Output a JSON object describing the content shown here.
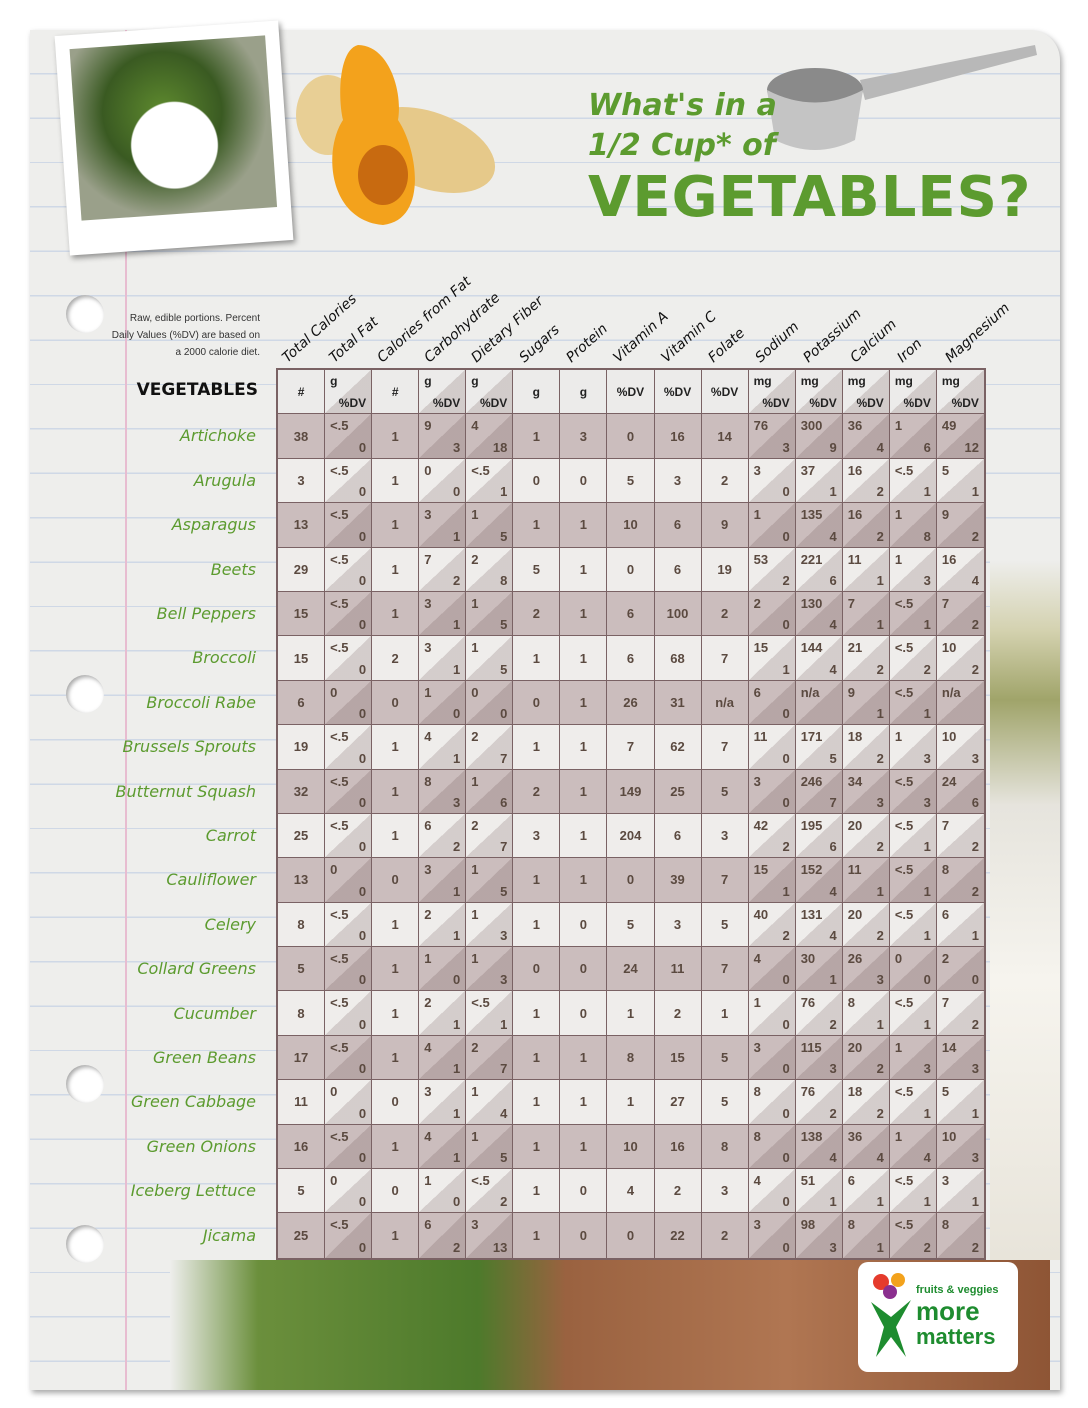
{
  "title": {
    "line1": "What's in a",
    "line2": "1/2 Cup* of",
    "line3": "VEGETABLES?"
  },
  "note": "Raw, edible portions. Percent Daily Values (%DV) are based on a 2000 calorie diet.",
  "row_header": "VEGETABLES",
  "logo": {
    "line1": "fruits & veggies",
    "line2": "more",
    "line3": "matters"
  },
  "colors": {
    "accent_green": "#5c9b2f",
    "table_border": "#7a6264",
    "row_dark": "#cbbdbd",
    "row_light": "#efedeb"
  },
  "columns": [
    "Total Calories",
    "Total Fat",
    "Calories from Fat",
    "Carbohydrate",
    "Dietary Fiber",
    "Sugars",
    "Protein",
    "Vitamin A",
    "Vitamin C",
    "Folate",
    "Sodium",
    "Potassium",
    "Calcium",
    "Iron",
    "Magnesium"
  ],
  "units": [
    "#",
    [
      "g",
      "%DV"
    ],
    "#",
    [
      "g",
      "%DV"
    ],
    [
      "g",
      "%DV"
    ],
    "g",
    "g",
    "%DV",
    "%DV",
    "%DV",
    [
      "mg",
      "%DV"
    ],
    [
      "mg",
      "%DV"
    ],
    [
      "mg",
      "%DV"
    ],
    [
      "mg",
      "%DV"
    ],
    [
      "mg",
      "%DV"
    ]
  ],
  "rows": [
    {
      "name": "Artichoke",
      "cells": [
        "38",
        [
          "<.5",
          "0"
        ],
        "1",
        [
          "9",
          "3"
        ],
        [
          "4",
          "18"
        ],
        "1",
        "3",
        "0",
        "16",
        "14",
        [
          "76",
          "3"
        ],
        [
          "300",
          "9"
        ],
        [
          "36",
          "4"
        ],
        [
          "1",
          "6"
        ],
        [
          "49",
          "12"
        ]
      ]
    },
    {
      "name": "Arugula",
      "cells": [
        "3",
        [
          "<.5",
          "0"
        ],
        "1",
        [
          "0",
          "0"
        ],
        [
          "<.5",
          "1"
        ],
        "0",
        "0",
        "5",
        "3",
        "2",
        [
          "3",
          "0"
        ],
        [
          "37",
          "1"
        ],
        [
          "16",
          "2"
        ],
        [
          "<.5",
          "1"
        ],
        [
          "5",
          "1"
        ]
      ]
    },
    {
      "name": "Asparagus",
      "cells": [
        "13",
        [
          "<.5",
          "0"
        ],
        "1",
        [
          "3",
          "1"
        ],
        [
          "1",
          "5"
        ],
        "1",
        "1",
        "10",
        "6",
        "9",
        [
          "1",
          "0"
        ],
        [
          "135",
          "4"
        ],
        [
          "16",
          "2"
        ],
        [
          "1",
          "8"
        ],
        [
          "9",
          "2"
        ]
      ]
    },
    {
      "name": "Beets",
      "cells": [
        "29",
        [
          "<.5",
          "0"
        ],
        "1",
        [
          "7",
          "2"
        ],
        [
          "2",
          "8"
        ],
        "5",
        "1",
        "0",
        "6",
        "19",
        [
          "53",
          "2"
        ],
        [
          "221",
          "6"
        ],
        [
          "11",
          "1"
        ],
        [
          "1",
          "3"
        ],
        [
          "16",
          "4"
        ]
      ]
    },
    {
      "name": "Bell Peppers",
      "cells": [
        "15",
        [
          "<.5",
          "0"
        ],
        "1",
        [
          "3",
          "1"
        ],
        [
          "1",
          "5"
        ],
        "2",
        "1",
        "6",
        "100",
        "2",
        [
          "2",
          "0"
        ],
        [
          "130",
          "4"
        ],
        [
          "7",
          "1"
        ],
        [
          "<.5",
          "1"
        ],
        [
          "7",
          "2"
        ]
      ]
    },
    {
      "name": "Broccoli",
      "cells": [
        "15",
        [
          "<.5",
          "0"
        ],
        "2",
        [
          "3",
          "1"
        ],
        [
          "1",
          "5"
        ],
        "1",
        "1",
        "6",
        "68",
        "7",
        [
          "15",
          "1"
        ],
        [
          "144",
          "4"
        ],
        [
          "21",
          "2"
        ],
        [
          "<.5",
          "2"
        ],
        [
          "10",
          "2"
        ]
      ]
    },
    {
      "name": "Broccoli Rabe",
      "cells": [
        "6",
        [
          "0",
          "0"
        ],
        "0",
        [
          "1",
          "0"
        ],
        [
          "0",
          "0"
        ],
        "0",
        "1",
        "26",
        "31",
        "n/a",
        [
          "6",
          "0"
        ],
        [
          "n/a",
          ""
        ],
        [
          "9",
          "1"
        ],
        [
          "<.5",
          "1"
        ],
        [
          "n/a",
          ""
        ]
      ]
    },
    {
      "name": "Brussels Sprouts",
      "cells": [
        "19",
        [
          "<.5",
          "0"
        ],
        "1",
        [
          "4",
          "1"
        ],
        [
          "2",
          "7"
        ],
        "1",
        "1",
        "7",
        "62",
        "7",
        [
          "11",
          "0"
        ],
        [
          "171",
          "5"
        ],
        [
          "18",
          "2"
        ],
        [
          "1",
          "3"
        ],
        [
          "10",
          "3"
        ]
      ]
    },
    {
      "name": "Butternut Squash",
      "cells": [
        "32",
        [
          "<.5",
          "0"
        ],
        "1",
        [
          "8",
          "3"
        ],
        [
          "1",
          "6"
        ],
        "2",
        "1",
        "149",
        "25",
        "5",
        [
          "3",
          "0"
        ],
        [
          "246",
          "7"
        ],
        [
          "34",
          "3"
        ],
        [
          "<.5",
          "3"
        ],
        [
          "24",
          "6"
        ]
      ]
    },
    {
      "name": "Carrot",
      "cells": [
        "25",
        [
          "<.5",
          "0"
        ],
        "1",
        [
          "6",
          "2"
        ],
        [
          "2",
          "7"
        ],
        "3",
        "1",
        "204",
        "6",
        "3",
        [
          "42",
          "2"
        ],
        [
          "195",
          "6"
        ],
        [
          "20",
          "2"
        ],
        [
          "<.5",
          "1"
        ],
        [
          "7",
          "2"
        ]
      ]
    },
    {
      "name": "Cauliflower",
      "cells": [
        "13",
        [
          "0",
          "0"
        ],
        "0",
        [
          "3",
          "1"
        ],
        [
          "1",
          "5"
        ],
        "1",
        "1",
        "0",
        "39",
        "7",
        [
          "15",
          "1"
        ],
        [
          "152",
          "4"
        ],
        [
          "11",
          "1"
        ],
        [
          "<.5",
          "1"
        ],
        [
          "8",
          "2"
        ]
      ]
    },
    {
      "name": "Celery",
      "cells": [
        "8",
        [
          "<.5",
          "0"
        ],
        "1",
        [
          "2",
          "1"
        ],
        [
          "1",
          "3"
        ],
        "1",
        "0",
        "5",
        "3",
        "5",
        [
          "40",
          "2"
        ],
        [
          "131",
          "4"
        ],
        [
          "20",
          "2"
        ],
        [
          "<.5",
          "1"
        ],
        [
          "6",
          "1"
        ]
      ]
    },
    {
      "name": "Collard Greens",
      "cells": [
        "5",
        [
          "<.5",
          "0"
        ],
        "1",
        [
          "1",
          "0"
        ],
        [
          "1",
          "3"
        ],
        "0",
        "0",
        "24",
        "11",
        "7",
        [
          "4",
          "0"
        ],
        [
          "30",
          "1"
        ],
        [
          "26",
          "3"
        ],
        [
          "0",
          "0"
        ],
        [
          "2",
          "0"
        ]
      ]
    },
    {
      "name": "Cucumber",
      "cells": [
        "8",
        [
          "<.5",
          "0"
        ],
        "1",
        [
          "2",
          "1"
        ],
        [
          "<.5",
          "1"
        ],
        "1",
        "0",
        "1",
        "2",
        "1",
        [
          "1",
          "0"
        ],
        [
          "76",
          "2"
        ],
        [
          "8",
          "1"
        ],
        [
          "<.5",
          "1"
        ],
        [
          "7",
          "2"
        ]
      ]
    },
    {
      "name": "Green Beans",
      "cells": [
        "17",
        [
          "<.5",
          "0"
        ],
        "1",
        [
          "4",
          "1"
        ],
        [
          "2",
          "7"
        ],
        "1",
        "1",
        "8",
        "15",
        "5",
        [
          "3",
          "0"
        ],
        [
          "115",
          "3"
        ],
        [
          "20",
          "2"
        ],
        [
          "1",
          "3"
        ],
        [
          "14",
          "3"
        ]
      ]
    },
    {
      "name": "Green Cabbage",
      "cells": [
        "11",
        [
          "0",
          "0"
        ],
        "0",
        [
          "3",
          "1"
        ],
        [
          "1",
          "4"
        ],
        "1",
        "1",
        "1",
        "27",
        "5",
        [
          "8",
          "0"
        ],
        [
          "76",
          "2"
        ],
        [
          "18",
          "2"
        ],
        [
          "<.5",
          "1"
        ],
        [
          "5",
          "1"
        ]
      ]
    },
    {
      "name": "Green Onions",
      "cells": [
        "16",
        [
          "<.5",
          "0"
        ],
        "1",
        [
          "4",
          "1"
        ],
        [
          "1",
          "5"
        ],
        "1",
        "1",
        "10",
        "16",
        "8",
        [
          "8",
          "0"
        ],
        [
          "138",
          "4"
        ],
        [
          "36",
          "4"
        ],
        [
          "1",
          "4"
        ],
        [
          "10",
          "3"
        ]
      ]
    },
    {
      "name": "Iceberg Lettuce",
      "cells": [
        "5",
        [
          "0",
          "0"
        ],
        "0",
        [
          "1",
          "0"
        ],
        [
          "<.5",
          "2"
        ],
        "1",
        "0",
        "4",
        "2",
        "3",
        [
          "4",
          "0"
        ],
        [
          "51",
          "1"
        ],
        [
          "6",
          "1"
        ],
        [
          "<.5",
          "1"
        ],
        [
          "3",
          "1"
        ]
      ]
    },
    {
      "name": "Jicama",
      "cells": [
        "25",
        [
          "<.5",
          "0"
        ],
        "1",
        [
          "6",
          "2"
        ],
        [
          "3",
          "13"
        ],
        "1",
        "0",
        "0",
        "22",
        "2",
        [
          "3",
          "0"
        ],
        [
          "98",
          "3"
        ],
        [
          "8",
          "1"
        ],
        [
          "<.5",
          "2"
        ],
        [
          "8",
          "2"
        ]
      ]
    }
  ]
}
